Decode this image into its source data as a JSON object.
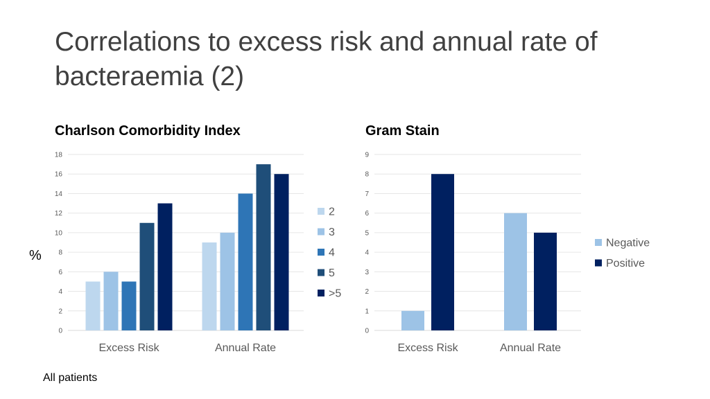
{
  "slide": {
    "title": "Correlations to excess risk and annual rate of bacteraemia (2)",
    "y_unit": "%",
    "footnote": "All patients"
  },
  "chart_data": [
    {
      "type": "bar",
      "title": "Charlson Comorbidity Index",
      "categories": [
        "Excess Risk",
        "Annual Rate"
      ],
      "series": [
        {
          "name": "2",
          "values": [
            5,
            9
          ],
          "color": "#BDD7EE"
        },
        {
          "name": "3",
          "values": [
            6,
            10
          ],
          "color": "#9DC3E6"
        },
        {
          "name": "4",
          "values": [
            5,
            14
          ],
          "color": "#2E75B6"
        },
        {
          "name": "5",
          "values": [
            11,
            17
          ],
          "color": "#1F4E79"
        },
        {
          "name": ">5",
          "values": [
            13,
            16
          ],
          "color": "#002060"
        }
      ],
      "ylim": [
        0,
        18
      ],
      "yticks": [
        0,
        2,
        4,
        6,
        8,
        10,
        12,
        14,
        16,
        18
      ],
      "ylabel": "%",
      "xlabel": "",
      "legend_position": "right",
      "grid": true
    },
    {
      "type": "bar",
      "title": "Gram Stain",
      "categories": [
        "Excess Risk",
        "Annual Rate"
      ],
      "series": [
        {
          "name": "Negative",
          "values": [
            1,
            6
          ],
          "color": "#9DC3E6"
        },
        {
          "name": "Positive",
          "values": [
            8,
            5
          ],
          "color": "#002060"
        }
      ],
      "ylim": [
        0,
        9
      ],
      "yticks": [
        0,
        1,
        2,
        3,
        4,
        5,
        6,
        7,
        8,
        9
      ],
      "ylabel": "",
      "xlabel": "",
      "legend_position": "right",
      "grid": true
    }
  ]
}
